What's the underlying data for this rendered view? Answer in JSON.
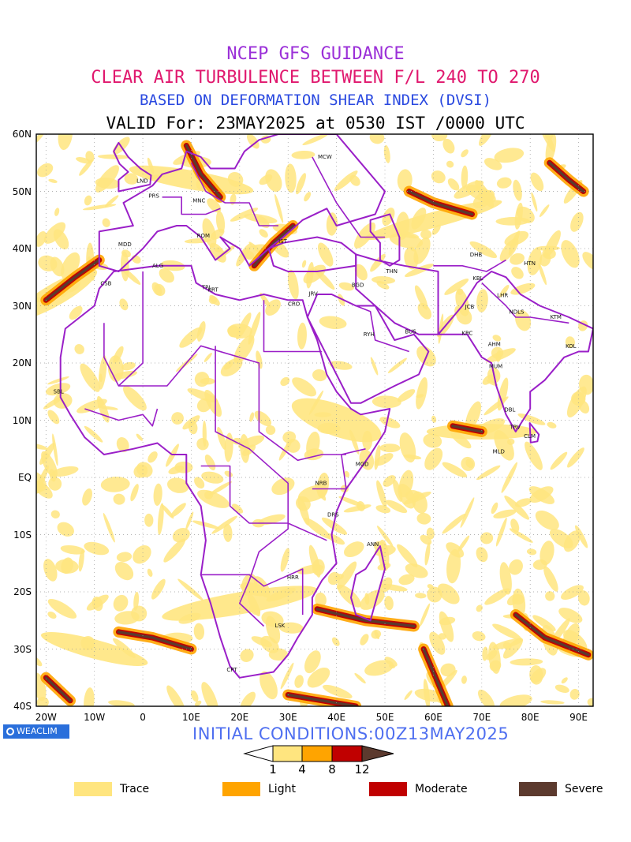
{
  "titles": {
    "line1": "NCEP GFS GUIDANCE",
    "line2": "CLEAR AIR TURBULENCE BETWEEN F/L 240 TO 270",
    "line3": "BASED ON DEFORMATION SHEAR INDEX (DVSI)",
    "line4": "VALID For: 23MAY2025 at 0530 IST /0000 UTC"
  },
  "colors": {
    "line1": "#9b30d8",
    "line2": "#e0186e",
    "line3": "#2a49e0",
    "line4": "#000000",
    "initial": "#4f6ff0",
    "border": "#9a1fc8",
    "trace": "#ffe57f",
    "light": "#ffa400",
    "moderate": "#c00000",
    "severe": "#5c3a2e"
  },
  "map": {
    "region": "20W-95E, 40S-60N",
    "lat_labels": [
      "60N",
      "50N",
      "40N",
      "30N",
      "20N",
      "10N",
      "EQ",
      "10S",
      "20S",
      "30S",
      "40S"
    ],
    "lon_labels": [
      "20W",
      "10W",
      "0",
      "10E",
      "20E",
      "30E",
      "40E",
      "50E",
      "60E",
      "70E",
      "80E",
      "90E"
    ],
    "cities": [
      {
        "code": "MCW",
        "lon": 37.6,
        "lat": 55.7
      },
      {
        "code": "LND",
        "lon": -0.1,
        "lat": 51.5
      },
      {
        "code": "PRS",
        "lon": 2.3,
        "lat": 48.9
      },
      {
        "code": "MNC",
        "lon": 11.6,
        "lat": 48.1
      },
      {
        "code": "ROM",
        "lon": 12.5,
        "lat": 41.9
      },
      {
        "code": "MDD",
        "lon": -3.7,
        "lat": 40.4
      },
      {
        "code": "IST",
        "lon": 28.9,
        "lat": 41.0
      },
      {
        "code": "ALG",
        "lon": 3.1,
        "lat": 36.7
      },
      {
        "code": "CSB",
        "lon": -7.6,
        "lat": 33.6
      },
      {
        "code": "TPL",
        "lon": 13.2,
        "lat": 32.9
      },
      {
        "code": "KRT",
        "lon": 14.5,
        "lat": 32.5
      },
      {
        "code": "CRO",
        "lon": 31.2,
        "lat": 30.0
      },
      {
        "code": "JRV",
        "lon": 35.2,
        "lat": 31.8
      },
      {
        "code": "BGD",
        "lon": 44.4,
        "lat": 33.3
      },
      {
        "code": "THN",
        "lon": 51.4,
        "lat": 35.7
      },
      {
        "code": "RYH",
        "lon": 46.7,
        "lat": 24.7
      },
      {
        "code": "BUS",
        "lon": 55.3,
        "lat": 25.2
      },
      {
        "code": "DHB",
        "lon": 68.8,
        "lat": 38.6
      },
      {
        "code": "HTN",
        "lon": 79.9,
        "lat": 37.1
      },
      {
        "code": "KBL",
        "lon": 69.2,
        "lat": 34.5
      },
      {
        "code": "LHR",
        "lon": 74.3,
        "lat": 31.5
      },
      {
        "code": "JCB",
        "lon": 67.5,
        "lat": 29.5
      },
      {
        "code": "NDLS",
        "lon": 77.2,
        "lat": 28.6
      },
      {
        "code": "KRC",
        "lon": 67.0,
        "lat": 24.9
      },
      {
        "code": "AHM",
        "lon": 72.6,
        "lat": 23.0
      },
      {
        "code": "KTM",
        "lon": 85.3,
        "lat": 27.7
      },
      {
        "code": "KOL",
        "lon": 88.4,
        "lat": 22.6
      },
      {
        "code": "MUM",
        "lon": 72.9,
        "lat": 19.1
      },
      {
        "code": "DBL",
        "lon": 75.8,
        "lat": 11.5
      },
      {
        "code": "TRV",
        "lon": 76.9,
        "lat": 8.5
      },
      {
        "code": "CLM",
        "lon": 79.9,
        "lat": 6.9
      },
      {
        "code": "SBL",
        "lon": -17.4,
        "lat": 14.7
      },
      {
        "code": "MGD",
        "lon": 45.3,
        "lat": 2.0
      },
      {
        "code": "MLD",
        "lon": 73.5,
        "lat": 4.2
      },
      {
        "code": "NRB",
        "lon": 36.8,
        "lat": -1.3
      },
      {
        "code": "DRS",
        "lon": 39.3,
        "lat": -6.8
      },
      {
        "code": "ANN",
        "lon": 47.5,
        "lat": -12.0
      },
      {
        "code": "HRR",
        "lon": 31.0,
        "lat": -17.8
      },
      {
        "code": "LSK",
        "lon": 28.3,
        "lat": -26.2
      },
      {
        "code": "CPT",
        "lon": 18.4,
        "lat": -33.9
      }
    ]
  },
  "logo": {
    "text": "WEACLIM",
    "icon": "circle-logo-icon"
  },
  "initial_conditions": "INITIAL CONDITIONS:00Z13MAY2025",
  "colorbar": {
    "thresholds": [
      "1",
      "4",
      "8",
      "12"
    ]
  },
  "legend": [
    {
      "label": "Trace",
      "color": "#ffe57f"
    },
    {
      "label": "Light",
      "color": "#ffa400"
    },
    {
      "label": "Moderate",
      "color": "#c00000"
    },
    {
      "label": "Severe",
      "color": "#5c3a2e"
    }
  ]
}
